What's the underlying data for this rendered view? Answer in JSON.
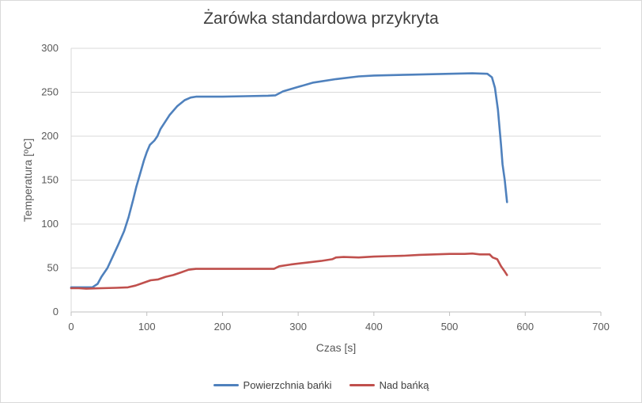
{
  "chart_data": {
    "type": "line",
    "title": "Żarówka standardowa przykryta",
    "xlabel": "Czas [s]",
    "ylabel": "Temperatura [ºC]",
    "xlim": [
      0,
      700
    ],
    "ylim": [
      0,
      300
    ],
    "x_ticks": [
      0,
      100,
      200,
      300,
      400,
      500,
      600,
      700
    ],
    "y_ticks": [
      0,
      50,
      100,
      150,
      200,
      250,
      300
    ],
    "grid": "horizontal",
    "legend_position": "bottom",
    "series": [
      {
        "name": "Powierzchnia bańki",
        "color": "#4f81bd",
        "points": [
          [
            0,
            28
          ],
          [
            10,
            28
          ],
          [
            20,
            28
          ],
          [
            28,
            28
          ],
          [
            35,
            32
          ],
          [
            40,
            40
          ],
          [
            48,
            50
          ],
          [
            55,
            63
          ],
          [
            62,
            76
          ],
          [
            70,
            92
          ],
          [
            76,
            108
          ],
          [
            82,
            128
          ],
          [
            86,
            142
          ],
          [
            92,
            160
          ],
          [
            96,
            172
          ],
          [
            100,
            182
          ],
          [
            104,
            190
          ],
          [
            110,
            195
          ],
          [
            114,
            200
          ],
          [
            118,
            208
          ],
          [
            124,
            216
          ],
          [
            130,
            224
          ],
          [
            140,
            234
          ],
          [
            150,
            241
          ],
          [
            158,
            244
          ],
          [
            165,
            245
          ],
          [
            200,
            245
          ],
          [
            230,
            245.5
          ],
          [
            260,
            246
          ],
          [
            270,
            246.5
          ],
          [
            280,
            251
          ],
          [
            300,
            256
          ],
          [
            320,
            261
          ],
          [
            350,
            265
          ],
          [
            380,
            268
          ],
          [
            400,
            269
          ],
          [
            450,
            270
          ],
          [
            500,
            271
          ],
          [
            530,
            271.5
          ],
          [
            550,
            271
          ],
          [
            556,
            267
          ],
          [
            560,
            255
          ],
          [
            564,
            230
          ],
          [
            568,
            190
          ],
          [
            570,
            168
          ],
          [
            573,
            150
          ],
          [
            576,
            125
          ]
        ]
      },
      {
        "name": "Nad bańką",
        "color": "#c0504d",
        "points": [
          [
            0,
            27
          ],
          [
            10,
            27
          ],
          [
            20,
            26.5
          ],
          [
            40,
            27
          ],
          [
            60,
            27.5
          ],
          [
            75,
            28
          ],
          [
            85,
            30
          ],
          [
            95,
            33
          ],
          [
            105,
            36
          ],
          [
            115,
            37
          ],
          [
            125,
            40
          ],
          [
            135,
            42
          ],
          [
            145,
            45
          ],
          [
            155,
            48
          ],
          [
            165,
            49
          ],
          [
            200,
            49
          ],
          [
            240,
            49
          ],
          [
            268,
            49
          ],
          [
            275,
            52
          ],
          [
            290,
            54
          ],
          [
            310,
            56
          ],
          [
            330,
            58
          ],
          [
            345,
            60
          ],
          [
            350,
            62
          ],
          [
            360,
            62.5
          ],
          [
            380,
            62
          ],
          [
            400,
            63
          ],
          [
            420,
            63.5
          ],
          [
            440,
            64
          ],
          [
            460,
            65
          ],
          [
            480,
            65.5
          ],
          [
            500,
            66
          ],
          [
            520,
            66
          ],
          [
            530,
            66.5
          ],
          [
            540,
            65.5
          ],
          [
            553,
            65.5
          ],
          [
            557,
            62
          ],
          [
            563,
            60
          ],
          [
            568,
            52
          ],
          [
            573,
            46
          ],
          [
            576,
            42
          ]
        ]
      }
    ]
  }
}
